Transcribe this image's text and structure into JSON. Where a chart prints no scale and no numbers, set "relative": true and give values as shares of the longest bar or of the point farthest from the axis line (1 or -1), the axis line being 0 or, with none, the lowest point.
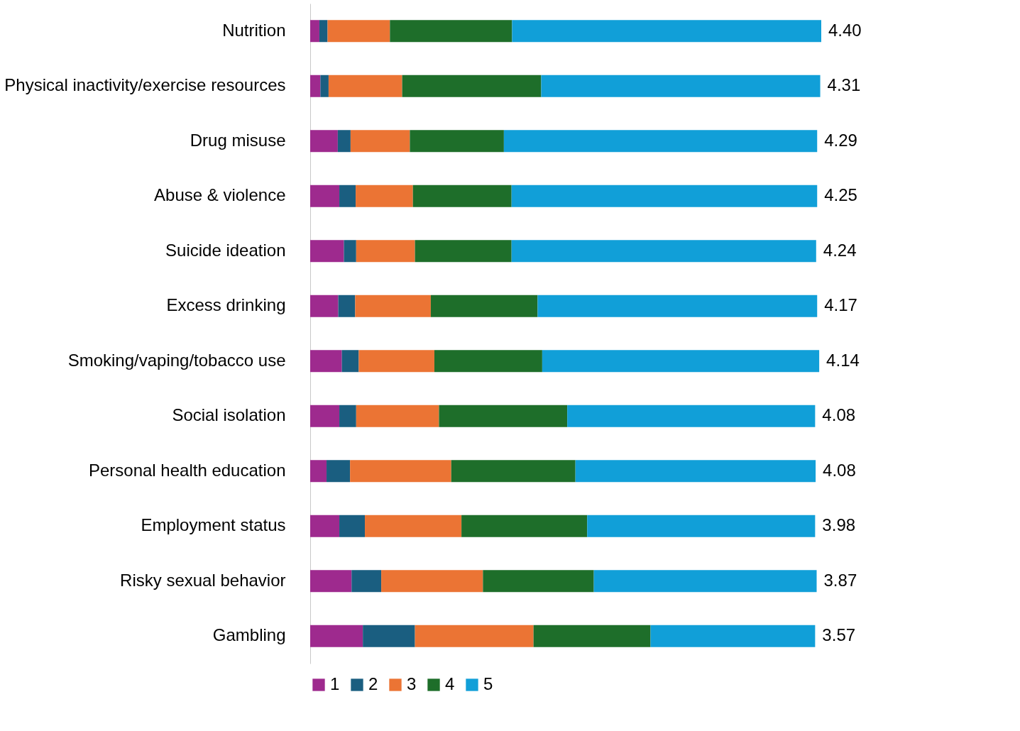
{
  "chart_data": {
    "type": "bar",
    "orientation": "horizontal",
    "stacked": true,
    "relative": true,
    "legend": "bottom",
    "categories": [
      "Nutrition",
      "Physical inactivity/exercise resources",
      "Drug misuse",
      "Abuse & violence",
      "Suicide ideation",
      "Excess drinking",
      "Smoking/vaping/tobacco use",
      "Social isolation",
      "Personal health education",
      "Employment status",
      "Risky sexual behavior",
      "Gambling"
    ],
    "series": [
      {
        "name": "1",
        "color": "#9e2a8e",
        "values": [
          0.018,
          0.02,
          0.054,
          0.057,
          0.066,
          0.055,
          0.062,
          0.057,
          0.032,
          0.057,
          0.081,
          0.103
        ]
      },
      {
        "name": "2",
        "color": "#1a5e80",
        "values": [
          0.016,
          0.016,
          0.025,
          0.032,
          0.024,
          0.033,
          0.033,
          0.033,
          0.046,
          0.05,
          0.058,
          0.102
        ]
      },
      {
        "name": "3",
        "color": "#eb7434",
        "values": [
          0.122,
          0.144,
          0.116,
          0.112,
          0.115,
          0.148,
          0.148,
          0.162,
          0.198,
          0.189,
          0.199,
          0.232
        ]
      },
      {
        "name": "4",
        "color": "#1e6e2a",
        "values": [
          0.239,
          0.272,
          0.184,
          0.193,
          0.189,
          0.209,
          0.211,
          0.251,
          0.243,
          0.246,
          0.217,
          0.229
        ]
      },
      {
        "name": "5",
        "color": "#119fd8",
        "values": [
          0.605,
          0.546,
          0.613,
          0.598,
          0.596,
          0.547,
          0.542,
          0.485,
          0.47,
          0.446,
          0.436,
          0.322
        ]
      }
    ],
    "annotations": [
      "4.40",
      "4.31",
      "4.29",
      "4.25",
      "4.24",
      "4.17",
      "4.14",
      "4.08",
      "4.08",
      "3.98",
      "3.87",
      "3.57"
    ]
  }
}
